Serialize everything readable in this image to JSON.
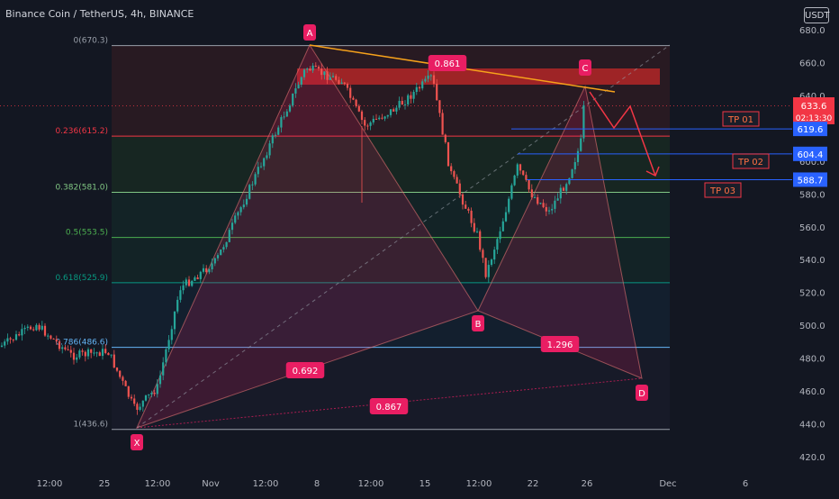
{
  "header": {
    "title": "Binance Coin / TetherUS, 4h, BINANCE",
    "currency_button": "USDT"
  },
  "price_axis": {
    "ticks": [
      "680.0",
      "660.0",
      "640.0",
      "620.0",
      "600.0",
      "580.0",
      "560.0",
      "540.0",
      "520.0",
      "500.0",
      "480.0",
      "460.0",
      "440.0",
      "420.0"
    ],
    "current_price": "633.6",
    "countdown": "02:13:30",
    "tp_tags": [
      "619.6",
      "604.4",
      "588.7"
    ],
    "current_color": "#f23645",
    "tp_color": "#2962ff"
  },
  "time_axis": {
    "ticks": [
      "12:00",
      "25",
      "12:00",
      "Nov",
      "12:00",
      "8",
      "12:00",
      "15",
      "12:00",
      "22",
      "26",
      "Dec",
      "6"
    ]
  },
  "fib_levels": [
    {
      "label": "0(670.3)",
      "price": 670.3,
      "color": "#9aa0aa"
    },
    {
      "label": "0.236(615.2)",
      "price": 615.2,
      "color": "#f23645"
    },
    {
      "label": "0.382(581.0)",
      "price": 581.0,
      "color": "#81c784"
    },
    {
      "label": "0.5(553.5)",
      "price": 553.5,
      "color": "#4caf50"
    },
    {
      "label": "0.618(525.9)",
      "price": 525.9,
      "color": "#089981"
    },
    {
      "label": "0.786(486.6)",
      "price": 486.6,
      "color": "#64b5f6"
    },
    {
      "label": "1(436.6)",
      "price": 436.6,
      "color": "#9aa0aa"
    }
  ],
  "pattern": {
    "points": {
      "X": "X",
      "A": "A",
      "B": "B",
      "C": "C",
      "D": "D"
    },
    "ratios": {
      "xb": "0.692",
      "ac": "0.861",
      "bd": "1.296",
      "xd": "0.867"
    },
    "color": "#e91e63"
  },
  "targets": [
    {
      "label": "TP 01",
      "price": 619.6
    },
    {
      "label": "TP 02",
      "price": 604.4
    },
    {
      "label": "TP 03",
      "price": 588.7
    }
  ],
  "colors": {
    "up": "#26a69a",
    "down": "#ef5350",
    "trendline": "#f7a21b"
  }
}
